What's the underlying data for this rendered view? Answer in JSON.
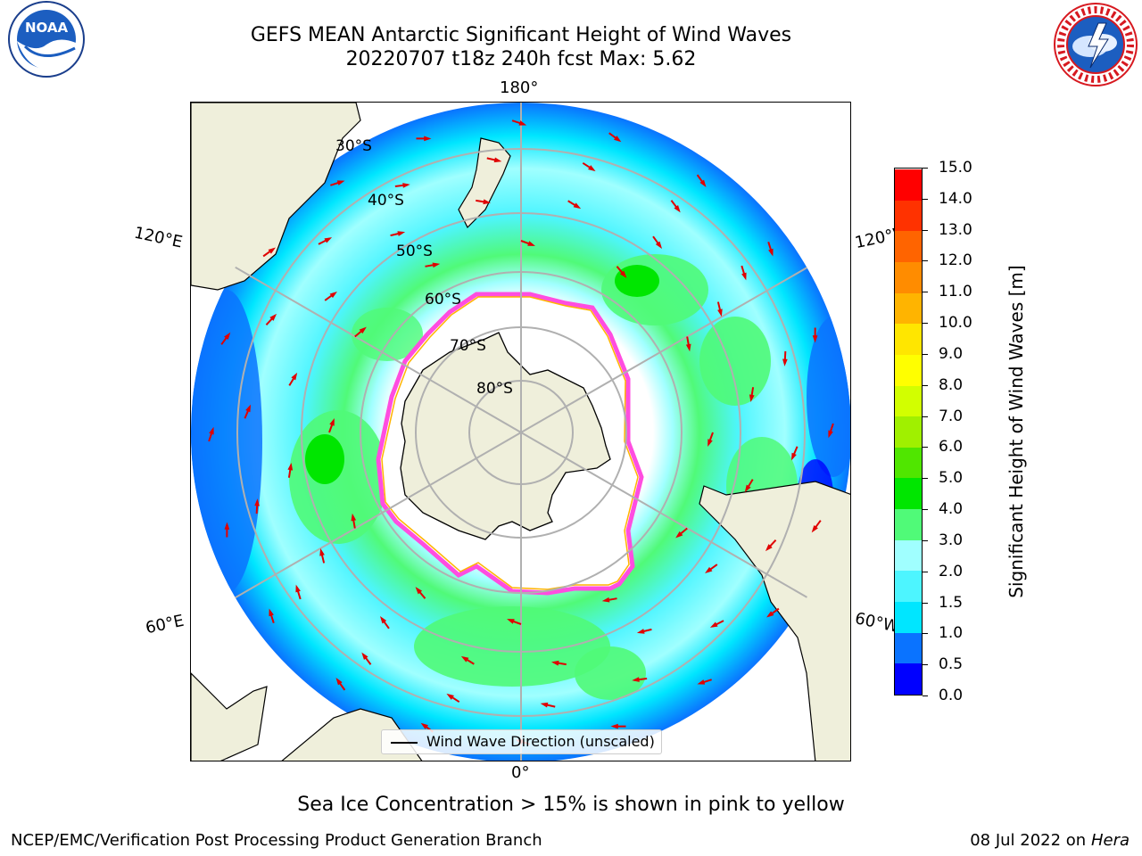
{
  "header": {
    "title_line1": "GEFS MEAN Antarctic Significant Height of Wind Waves",
    "title_line2": "20220707 t18z 240h fcst   Max: 5.62"
  },
  "logos": {
    "noaa_text": "NOAA",
    "nws_text": "NATIONAL WEATHER SERVICE"
  },
  "map": {
    "projection": "south-polar-stereographic",
    "longitude_labels": [
      "180°",
      "120°E",
      "120°W",
      "60°E",
      "60°W",
      "0°"
    ],
    "latitude_labels": [
      "30°S",
      "40°S",
      "50°S",
      "60°S",
      "70°S",
      "80°S"
    ],
    "legend_label": "Wind Wave Direction (unscaled)"
  },
  "colorbar": {
    "label": "Significant Height of Wind Waves [m]",
    "ticks": [
      "0.0",
      "0.5",
      "1.0",
      "1.5",
      "2.0",
      "3.0",
      "4.0",
      "5.0",
      "6.0",
      "7.0",
      "8.0",
      "9.0",
      "10.0",
      "11.0",
      "12.0",
      "13.0",
      "14.0",
      "15.0"
    ],
    "colors": [
      "#0000ff",
      "#0a73ff",
      "#00e6ff",
      "#4df5ff",
      "#a0ffff",
      "#50fa78",
      "#00e600",
      "#50e600",
      "#a0f000",
      "#d2ff00",
      "#ffff00",
      "#ffe600",
      "#ffb400",
      "#ff8c00",
      "#ff6400",
      "#ff3200",
      "#ff0000"
    ]
  },
  "footer": {
    "note": "Sea Ice Concentration > 15% is shown in pink to yellow",
    "credit": "NCEP/EMC/Verification Post Processing Product Generation Branch",
    "date": "08 Jul 2022 on ",
    "host": "Hera"
  }
}
